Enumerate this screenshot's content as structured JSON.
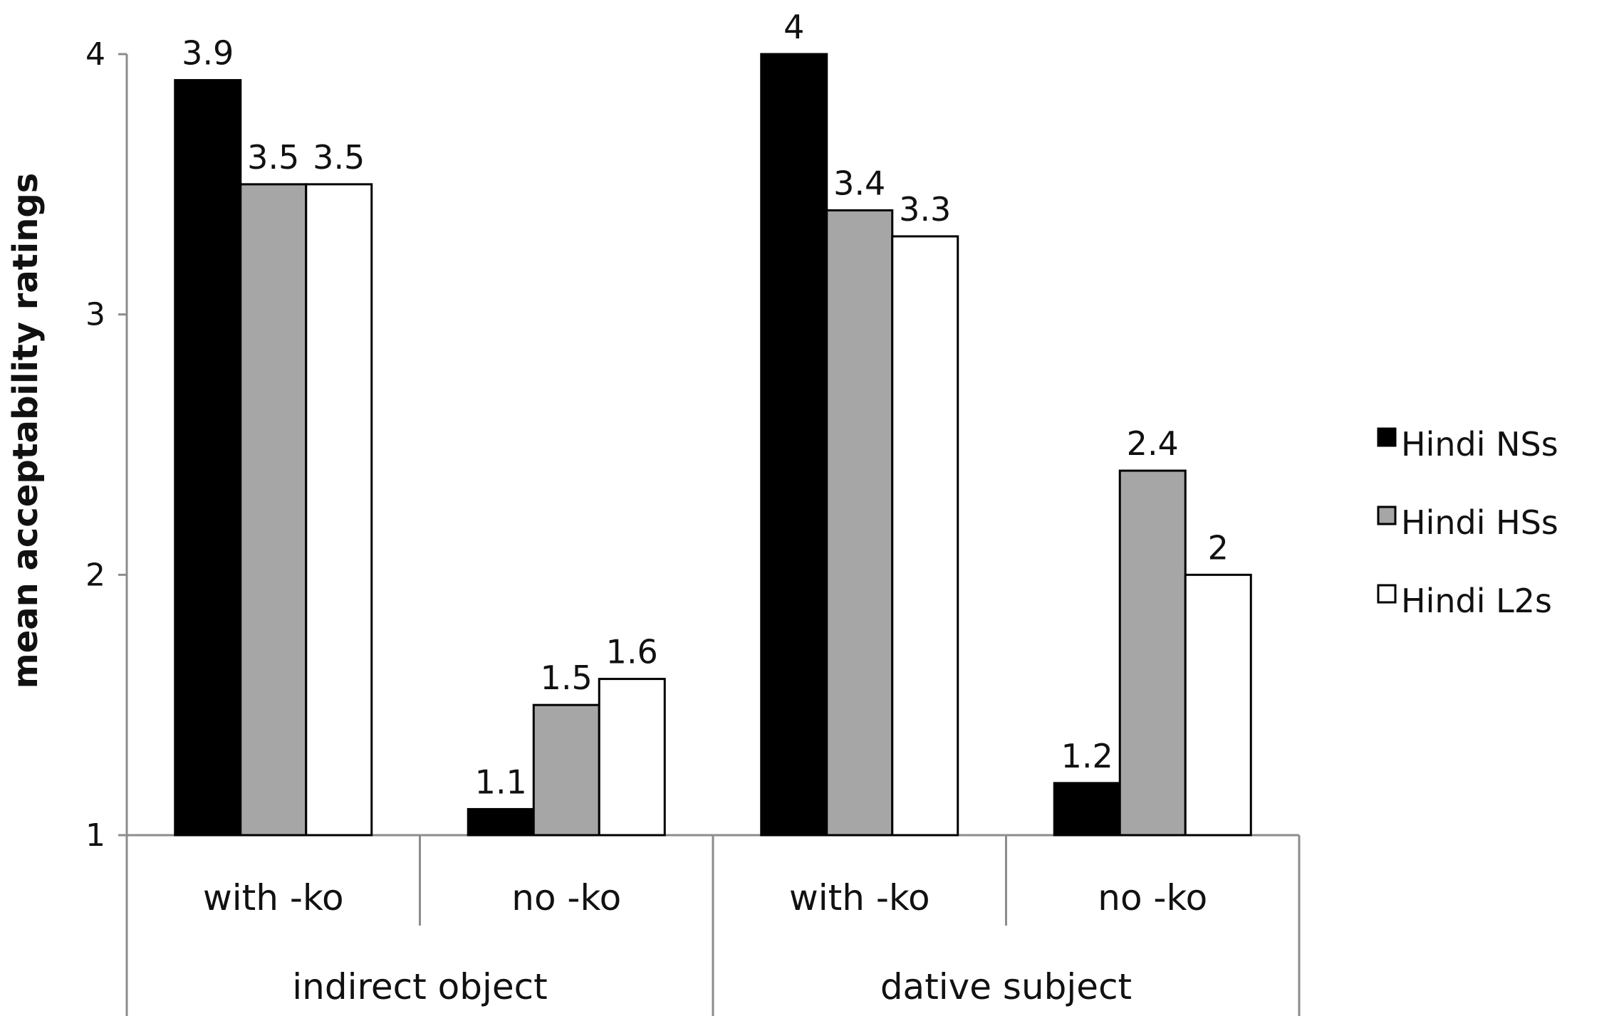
{
  "chart_data": {
    "type": "bar",
    "ylabel": "mean acceptability ratings",
    "ylim": [
      1,
      4
    ],
    "yticks": [
      "1",
      "2",
      "3",
      "4"
    ],
    "grid": false,
    "legend_position": "right",
    "groups": [
      {
        "label": "indirect object",
        "categories": [
          "with -ko",
          "no -ko"
        ]
      },
      {
        "label": "dative subject",
        "categories": [
          "with -ko",
          "no -ko"
        ]
      }
    ],
    "categories": [
      "with -ko",
      "no -ko",
      "with -ko",
      "no -ko"
    ],
    "series": [
      {
        "name": "Hindi NSs",
        "color": "#000000",
        "values": [
          3.9,
          1.1,
          4,
          1.2
        ],
        "labels": [
          "3.9",
          "1.1",
          "4",
          "1.2"
        ]
      },
      {
        "name": "Hindi HSs",
        "color": "#a6a6a6",
        "values": [
          3.5,
          1.5,
          3.4,
          2.4
        ],
        "labels": [
          "3.5",
          "1.5",
          "3.4",
          "2.4"
        ]
      },
      {
        "name": "Hindi L2s",
        "color": "#ffffff",
        "values": [
          3.5,
          1.6,
          3.3,
          2
        ],
        "labels": [
          "3.5",
          "1.6",
          "3.3",
          "2"
        ]
      }
    ]
  }
}
